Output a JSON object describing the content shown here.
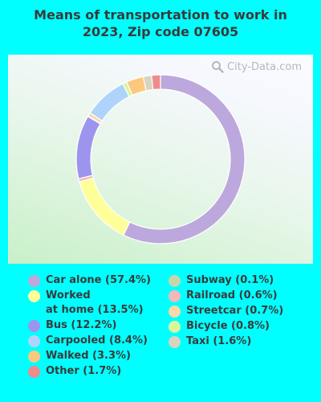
{
  "title_lines": [
    "Means of transportation to work in",
    "2023, Zip code 07605"
  ],
  "watermark": "City-Data.com",
  "chart_data": {
    "type": "pie",
    "title": "Means of transportation to work in 2023, Zip code 07605",
    "legend_placement": "bottom",
    "slices": [
      {
        "name": "Car alone",
        "label": "Car alone (57.4%)",
        "value": 57.4,
        "color": "#BCA8DC"
      },
      {
        "name": "Worked at home",
        "label_lines": [
          "Worked",
          "at home (13.5%)"
        ],
        "value": 13.5,
        "color": "#FFFF9A"
      },
      {
        "name": "Railroad",
        "label": "Railroad (0.6%)",
        "value": 0.6,
        "color": "#F4B8B8"
      },
      {
        "name": "Bus",
        "label": "Bus (12.2%)",
        "value": 12.2,
        "color": "#9D94EE"
      },
      {
        "name": "Subway",
        "label": "Subway (0.1%)",
        "value": 0.1,
        "color": "#C7D6A8"
      },
      {
        "name": "Streetcar",
        "label": "Streetcar (0.7%)",
        "value": 0.7,
        "color": "#FBD8A8"
      },
      {
        "name": "Carpooled",
        "label": "Carpooled (8.4%)",
        "value": 8.4,
        "color": "#AED4FC"
      },
      {
        "name": "Bicycle",
        "label": "Bicycle (0.8%)",
        "value": 0.8,
        "color": "#D9F59C"
      },
      {
        "name": "Walked",
        "label": "Walked (3.3%)",
        "value": 3.3,
        "color": "#FCC87C"
      },
      {
        "name": "Taxi",
        "label": "Taxi (1.6%)",
        "value": 1.6,
        "color": "#D8D4BE"
      },
      {
        "name": "Other",
        "label": "Other (1.7%)",
        "value": 1.7,
        "color": "#EC8C8C"
      }
    ]
  },
  "legend": {
    "left": [
      {
        "label": "Car alone (57.4%)",
        "color": "#BCA8DC"
      },
      {
        "label_lines": [
          "Worked",
          "at home (13.5%)"
        ],
        "color": "#FFFF9A"
      },
      {
        "label": "Bus (12.2%)",
        "color": "#9D94EE"
      },
      {
        "label": "Carpooled (8.4%)",
        "color": "#AED4FC"
      },
      {
        "label": "Walked (3.3%)",
        "color": "#FCC87C"
      },
      {
        "label": "Other (1.7%)",
        "color": "#EC8C8C"
      }
    ],
    "right": [
      {
        "label": "Subway (0.1%)",
        "color": "#C7D6A8"
      },
      {
        "label": "Railroad (0.6%)",
        "color": "#F4B8B8"
      },
      {
        "label": "Streetcar (0.7%)",
        "color": "#FBD8A8"
      },
      {
        "label": "Bicycle (0.8%)",
        "color": "#D9F59C"
      },
      {
        "label": "Taxi (1.6%)",
        "color": "#D8D4BE"
      }
    ]
  }
}
